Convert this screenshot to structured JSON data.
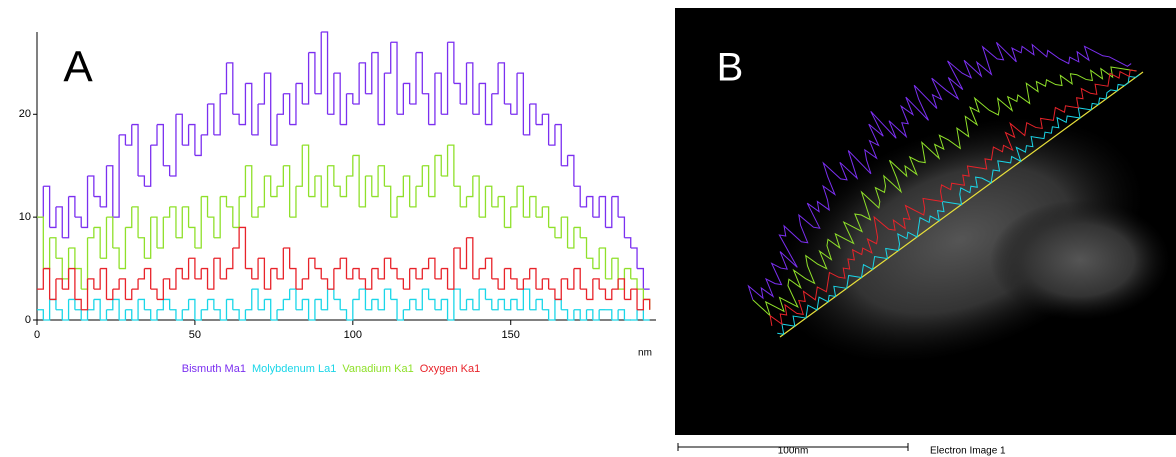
{
  "chart_data": {
    "type": "line",
    "step": true,
    "annotation": "A",
    "x_label": "nm",
    "x": [
      0,
      2,
      4,
      6,
      8,
      10,
      12,
      14,
      16,
      18,
      20,
      22,
      24,
      26,
      28,
      30,
      32,
      34,
      36,
      38,
      40,
      42,
      44,
      46,
      48,
      50,
      52,
      54,
      56,
      58,
      60,
      62,
      64,
      66,
      68,
      70,
      72,
      74,
      76,
      78,
      80,
      82,
      84,
      86,
      88,
      90,
      92,
      94,
      96,
      98,
      100,
      102,
      104,
      106,
      108,
      110,
      112,
      114,
      116,
      118,
      120,
      122,
      124,
      126,
      128,
      130,
      132,
      134,
      136,
      138,
      140,
      142,
      144,
      146,
      148,
      150,
      152,
      154,
      156,
      158,
      160,
      162,
      164,
      166,
      168,
      170,
      172,
      174,
      176,
      178,
      180,
      182,
      184,
      186,
      188,
      190,
      192,
      194
    ],
    "series": [
      {
        "name": "Bismuth Ma1",
        "color": "#7b2ff0",
        "values": [
          10,
          13,
          9,
          11,
          8,
          12,
          10,
          9,
          14,
          12,
          11,
          15,
          10,
          18,
          17,
          19,
          14,
          13,
          17,
          19,
          15,
          14,
          20,
          17,
          19,
          16,
          18,
          21,
          18,
          22,
          25,
          20,
          19,
          23,
          18,
          21,
          24,
          17,
          20,
          22,
          19,
          23,
          21,
          26,
          22,
          28,
          20,
          24,
          19,
          22,
          21,
          25,
          22,
          26,
          19,
          24,
          27,
          20,
          23,
          21,
          26,
          22,
          19,
          24,
          20,
          27,
          23,
          21,
          25,
          20,
          23,
          19,
          22,
          25,
          21,
          20,
          24,
          18,
          21,
          19,
          20,
          17,
          19,
          15,
          16,
          13,
          11,
          12,
          10,
          12,
          9,
          12,
          10,
          8,
          7,
          5,
          3,
          3
        ]
      },
      {
        "name": "Molybdenum La1",
        "color": "#1ad6e8",
        "values": [
          1,
          0,
          2,
          1,
          0,
          2,
          1,
          0,
          1,
          2,
          0,
          1,
          2,
          0,
          1,
          0,
          2,
          1,
          0,
          1,
          2,
          1,
          0,
          1,
          2,
          0,
          1,
          2,
          1,
          0,
          2,
          1,
          0,
          1,
          3,
          1,
          2,
          0,
          1,
          2,
          3,
          1,
          2,
          0,
          2,
          1,
          3,
          2,
          1,
          0,
          2,
          3,
          1,
          2,
          1,
          3,
          2,
          0,
          1,
          2,
          1,
          3,
          2,
          1,
          2,
          0,
          3,
          1,
          2,
          1,
          3,
          2,
          1,
          2,
          1,
          2,
          1,
          3,
          1,
          2,
          1,
          0,
          2,
          1,
          0,
          1,
          0,
          1,
          0,
          1,
          1,
          0,
          1,
          0,
          0,
          1,
          0,
          0
        ]
      },
      {
        "name": "Vanadium Ka1",
        "color": "#8fe02a",
        "values": [
          10,
          5,
          8,
          6,
          4,
          7,
          5,
          3,
          8,
          9,
          6,
          10,
          7,
          5,
          9,
          11,
          8,
          6,
          10,
          7,
          10,
          11,
          8,
          11,
          9,
          7,
          12,
          10,
          8,
          12,
          11,
          9,
          12,
          15,
          10,
          11,
          14,
          12,
          13,
          15,
          10,
          13,
          17,
          12,
          14,
          11,
          15,
          13,
          12,
          14,
          16,
          11,
          14,
          12,
          15,
          13,
          10,
          12,
          14,
          11,
          13,
          15,
          12,
          16,
          14,
          17,
          13,
          11,
          12,
          14,
          10,
          13,
          11,
          12,
          9,
          11,
          13,
          10,
          12,
          10,
          11,
          9,
          8,
          10,
          7,
          9,
          8,
          6,
          5,
          7,
          4,
          6,
          3,
          5,
          4,
          3,
          2,
          1
        ]
      },
      {
        "name": "Oxygen Ka1",
        "color": "#e8232a",
        "values": [
          3,
          5,
          2,
          4,
          3,
          5,
          2,
          1,
          4,
          3,
          5,
          2,
          3,
          4,
          2,
          3,
          4,
          5,
          3,
          2,
          4,
          3,
          5,
          4,
          6,
          4,
          5,
          3,
          6,
          4,
          5,
          7,
          9,
          5,
          4,
          6,
          3,
          5,
          4,
          7,
          5,
          3,
          4,
          6,
          5,
          4,
          3,
          5,
          6,
          4,
          5,
          4,
          3,
          5,
          4,
          6,
          5,
          4,
          3,
          5,
          4,
          5,
          6,
          4,
          5,
          3,
          7,
          5,
          8,
          4,
          5,
          6,
          4,
          3,
          5,
          4,
          3,
          4,
          5,
          3,
          4,
          3,
          2,
          4,
          3,
          5,
          3,
          2,
          4,
          3,
          2,
          3,
          4,
          2,
          3,
          1,
          2,
          1
        ]
      }
    ],
    "xlim": [
      0,
      196
    ],
    "xticks": [
      0,
      50,
      100,
      150
    ],
    "ylim": [
      0,
      28
    ],
    "yticks": [
      0,
      10,
      20
    ],
    "grid": false
  },
  "image_panel": {
    "label": "B",
    "scale_bar": "100nm",
    "caption": "Electron Image 1"
  }
}
